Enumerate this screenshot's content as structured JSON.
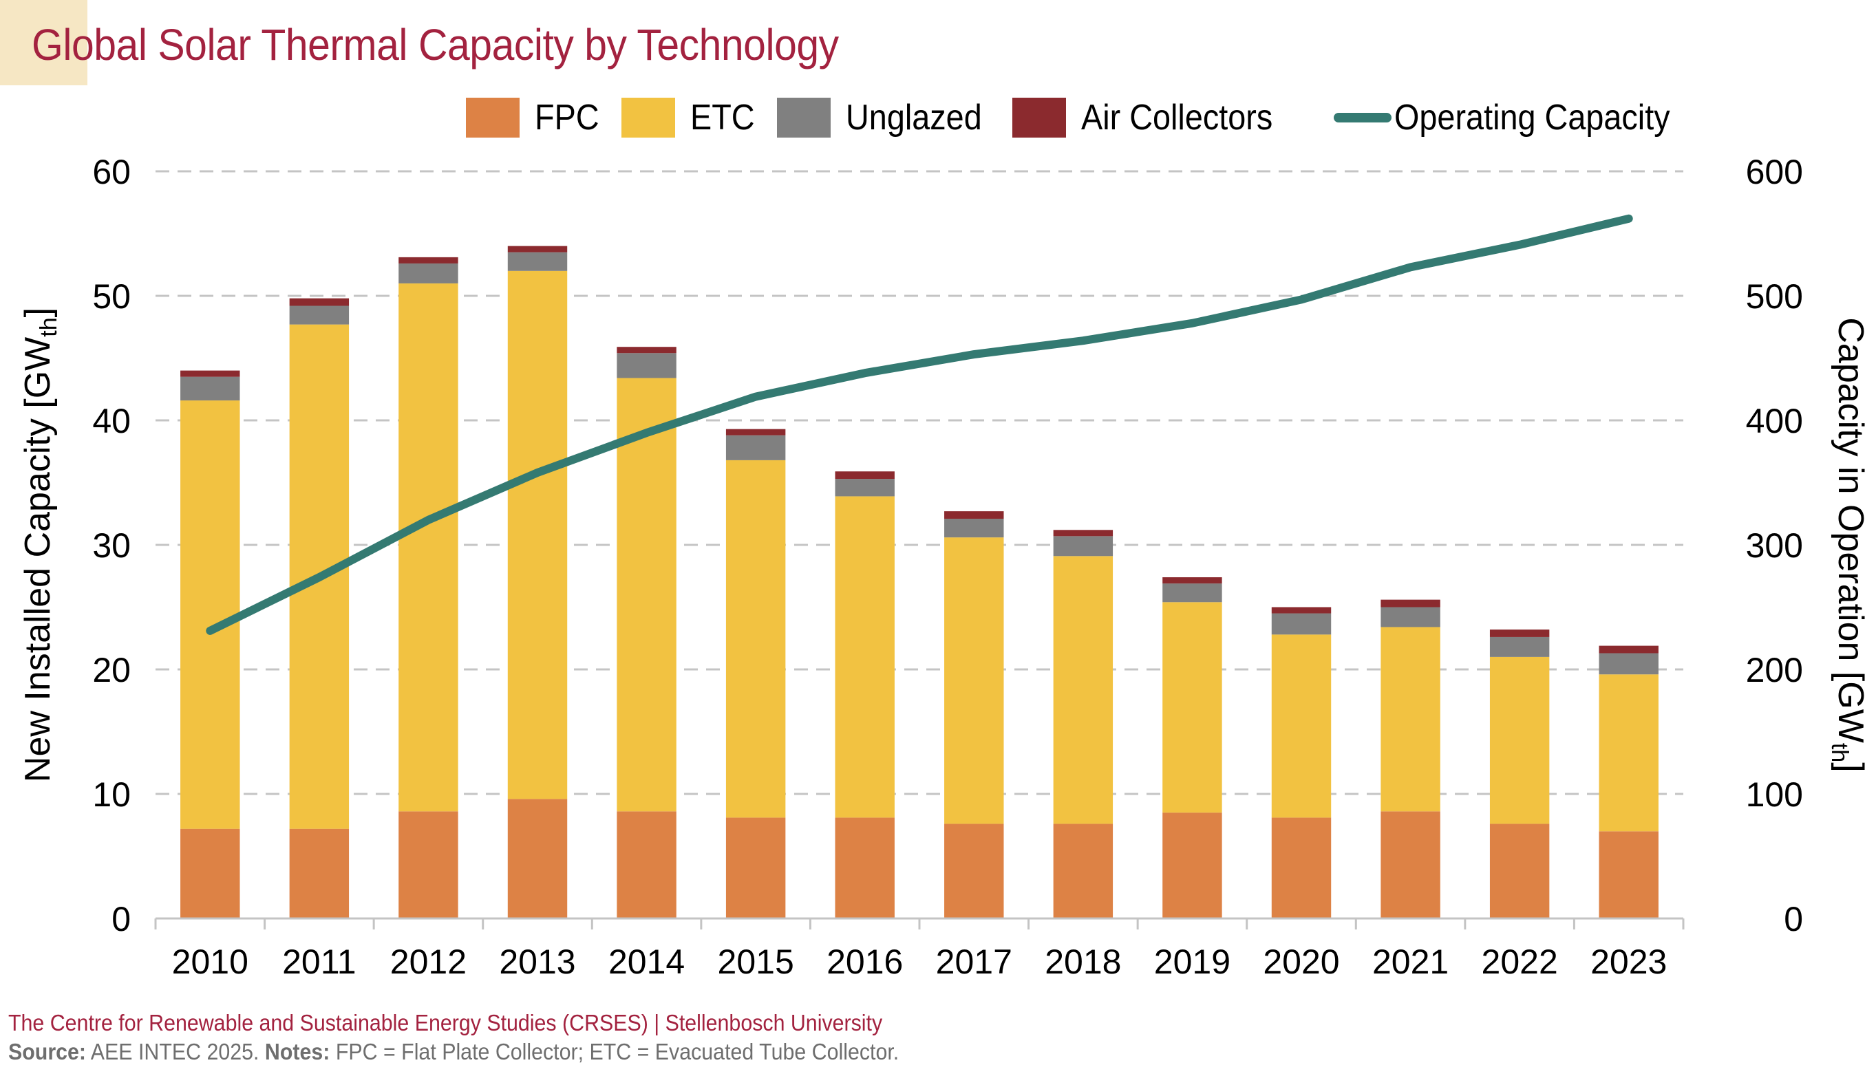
{
  "header": {
    "title": "Global Solar Thermal Capacity by Technology"
  },
  "colors": {
    "title": "#a3223f",
    "fpc": "#dd8245",
    "etc": "#f2c241",
    "unglazed": "#808080",
    "air": "#8b2a2e",
    "line": "#347a72",
    "grid": "#c4c4c4",
    "accent_box": "#f6e7c4"
  },
  "footer": {
    "credit": "The Centre for Renewable and Sustainable Energy Studies (CRSES) | Stellenbosch University",
    "source_label": "Source:",
    "source_text": " AEE INTEC 2025. ",
    "notes_label": "Notes:",
    "notes_text": " FPC = Flat Plate Collector; ETC = Evacuated Tube Collector."
  },
  "chart_data": {
    "type": "bar",
    "stacked": true,
    "title": "Global Solar Thermal Capacity by Technology",
    "xlabel": "",
    "ylabel": "New Installed Capacity [GWth]",
    "ylabel_main": "New Installed Capacity [GW",
    "ylabel_sub": "th",
    "ylabel_end": "]",
    "y2label": "Capacity in Operation [GWth]",
    "y2label_main": "Capacity in Operation [GW",
    "y2label_sub": "th",
    "y2label_end": "]",
    "ylim": [
      0,
      60
    ],
    "y2lim": [
      0,
      600
    ],
    "yticks": [
      0,
      10,
      20,
      30,
      40,
      50,
      60
    ],
    "y2ticks": [
      0,
      100,
      200,
      300,
      400,
      500,
      600
    ],
    "grid": true,
    "legend_position": "top",
    "categories": [
      "2010",
      "2011",
      "2012",
      "2013",
      "2014",
      "2015",
      "2016",
      "2017",
      "2018",
      "2019",
      "2020",
      "2021",
      "2022",
      "2023"
    ],
    "series": [
      {
        "name": "FPC",
        "type": "bar",
        "axis": "left",
        "values": [
          7.2,
          7.2,
          8.6,
          9.6,
          8.6,
          8.1,
          8.1,
          7.6,
          7.6,
          8.5,
          8.1,
          8.6,
          7.6,
          7.0
        ]
      },
      {
        "name": "ETC",
        "type": "bar",
        "axis": "left",
        "values": [
          34.4,
          40.5,
          42.4,
          42.4,
          34.8,
          28.7,
          25.8,
          23.0,
          21.5,
          16.9,
          14.7,
          14.8,
          13.4,
          12.6
        ]
      },
      {
        "name": "Unglazed",
        "type": "bar",
        "axis": "left",
        "values": [
          1.9,
          1.5,
          1.6,
          1.5,
          2.0,
          2.0,
          1.4,
          1.5,
          1.6,
          1.5,
          1.7,
          1.6,
          1.6,
          1.7
        ]
      },
      {
        "name": "Air Collectors",
        "type": "bar",
        "axis": "left",
        "values": [
          0.5,
          0.6,
          0.5,
          0.5,
          0.5,
          0.5,
          0.6,
          0.6,
          0.5,
          0.5,
          0.5,
          0.6,
          0.6,
          0.6
        ]
      },
      {
        "name": "Operating Capacity",
        "type": "line",
        "axis": "right",
        "values": [
          231,
          274,
          320,
          358,
          390,
          419,
          438,
          453,
          464,
          478,
          497,
          523,
          541,
          562
        ]
      }
    ]
  }
}
